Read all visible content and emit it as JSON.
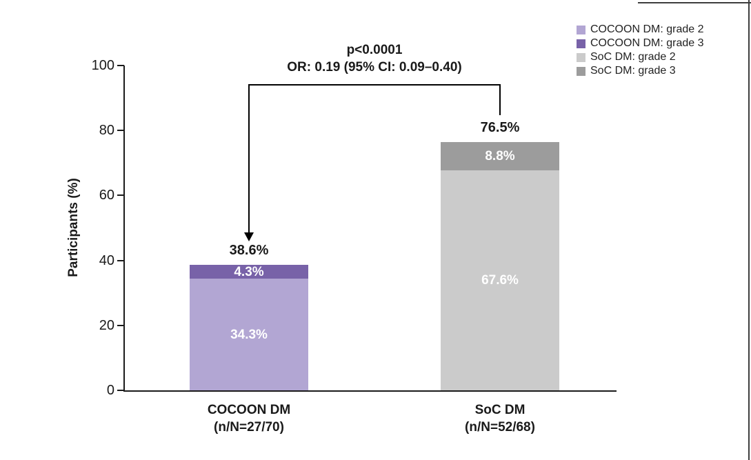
{
  "figure": {
    "ylabel": "Participants (%)",
    "annotation": {
      "line1": "p<0.0001",
      "line2": "OR: 0.19 (95% CI: 0.09–0.40)"
    }
  },
  "legend": {
    "items": [
      {
        "label": "COCOON DM: grade 2",
        "color": "#b2a6d3"
      },
      {
        "label": "COCOON DM: grade 3",
        "color": "#7862a8"
      },
      {
        "label": "SoC DM: grade 2",
        "color": "#cbcbcb"
      },
      {
        "label": "SoC DM: grade 3",
        "color": "#9c9c9c"
      }
    ]
  },
  "chart_data": {
    "type": "bar",
    "stacked": true,
    "title": "",
    "xlabel": "",
    "ylabel": "Participants (%)",
    "ylim": [
      0,
      100
    ],
    "yticks": [
      0,
      20,
      40,
      60,
      80,
      100
    ],
    "grid": false,
    "legend_position": "top-right",
    "annotation": "p<0.0001; OR: 0.19 (95% CI: 0.09–0.40); arrow from bracket points to COCOON DM bar",
    "categories": [
      "COCOON DM (n/N=27/70)",
      "SoC DM (n/N=52/68)"
    ],
    "bars": [
      {
        "category_line1": "COCOON DM",
        "category_line2": "(n/N=27/70)",
        "total": 38.6,
        "total_label": "38.6%",
        "segments": [
          {
            "name": "COCOON DM: grade 2",
            "value": 34.3,
            "label": "34.3%",
            "color": "#b2a6d3",
            "label_color": "#ffffff"
          },
          {
            "name": "COCOON DM: grade 3",
            "value": 4.3,
            "label": "4.3%",
            "color": "#7862a8",
            "label_color": "#ffffff"
          }
        ]
      },
      {
        "category_line1": "SoC DM",
        "category_line2": "(n/N=52/68)",
        "total": 76.5,
        "total_label": "76.5%",
        "segments": [
          {
            "name": "SoC DM: grade 2",
            "value": 67.6,
            "label": "67.6%",
            "color": "#cbcbcb",
            "label_color": "#ffffff"
          },
          {
            "name": "SoC DM: grade 3",
            "value": 8.8,
            "label": "8.8%",
            "color": "#9c9c9c",
            "label_color": "#ffffff"
          }
        ]
      }
    ]
  }
}
